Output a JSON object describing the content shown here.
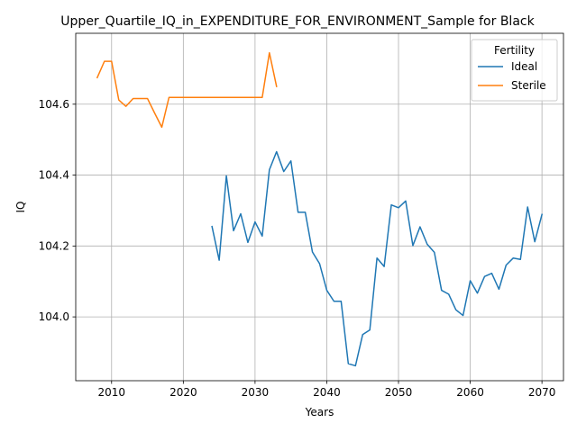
{
  "chart_data": {
    "type": "line",
    "title": "Upper_Quartile_IQ_in_EXPENDITURE_FOR_ENVIRONMENT_Sample for Black",
    "xlabel": "Years",
    "ylabel": "IQ",
    "xlim": [
      2005,
      2073
    ],
    "ylim": [
      103.82,
      104.8
    ],
    "xticks": [
      2010,
      2020,
      2030,
      2040,
      2050,
      2060,
      2070
    ],
    "yticks": [
      104.0,
      104.2,
      104.4,
      104.6
    ],
    "ytick_labels": [
      "104.0",
      "104.2",
      "104.4",
      "104.6"
    ],
    "grid": true,
    "legend": {
      "title": "Fertility",
      "placement": "top-right"
    },
    "series": [
      {
        "name": "Ideal",
        "color": "#1f77b4",
        "x": [
          2024,
          2025,
          2026,
          2027,
          2028,
          2029,
          2030,
          2031,
          2032,
          2033,
          2034,
          2035,
          2036,
          2037,
          2038,
          2039,
          2040,
          2041,
          2042,
          2043,
          2044,
          2045,
          2046,
          2047,
          2048,
          2049,
          2050,
          2051,
          2052,
          2053,
          2054,
          2055,
          2056,
          2057,
          2058,
          2059,
          2060,
          2061,
          2062,
          2063,
          2064,
          2065,
          2066,
          2067,
          2068,
          2069,
          2070
        ],
        "y": [
          104.255,
          104.16,
          104.398,
          104.243,
          104.291,
          104.21,
          104.268,
          104.228,
          104.415,
          104.466,
          104.41,
          104.44,
          104.295,
          104.295,
          104.183,
          104.15,
          104.075,
          104.044,
          104.044,
          103.868,
          103.862,
          103.95,
          103.963,
          104.166,
          104.142,
          104.316,
          104.308,
          104.327,
          104.201,
          104.254,
          104.205,
          104.182,
          104.075,
          104.064,
          104.02,
          104.004,
          104.102,
          104.067,
          104.114,
          104.123,
          104.078,
          104.146,
          104.166,
          104.162,
          104.31,
          104.212,
          104.289
        ]
      },
      {
        "name": "Sterile",
        "color": "#ff7f0e",
        "x": [
          2008,
          2009,
          2010,
          2011,
          2012,
          2013,
          2014,
          2015,
          2016,
          2017,
          2018,
          2019,
          2020,
          2021,
          2022,
          2023,
          2024,
          2025,
          2026,
          2027,
          2028,
          2029,
          2030,
          2031,
          2032,
          2033
        ],
        "y": [
          104.675,
          104.721,
          104.721,
          104.612,
          104.594,
          104.616,
          104.616,
          104.616,
          104.575,
          104.535,
          104.619,
          104.619,
          104.619,
          104.619,
          104.619,
          104.619,
          104.619,
          104.619,
          104.619,
          104.619,
          104.619,
          104.619,
          104.619,
          104.619,
          104.745,
          104.65
        ]
      }
    ]
  }
}
